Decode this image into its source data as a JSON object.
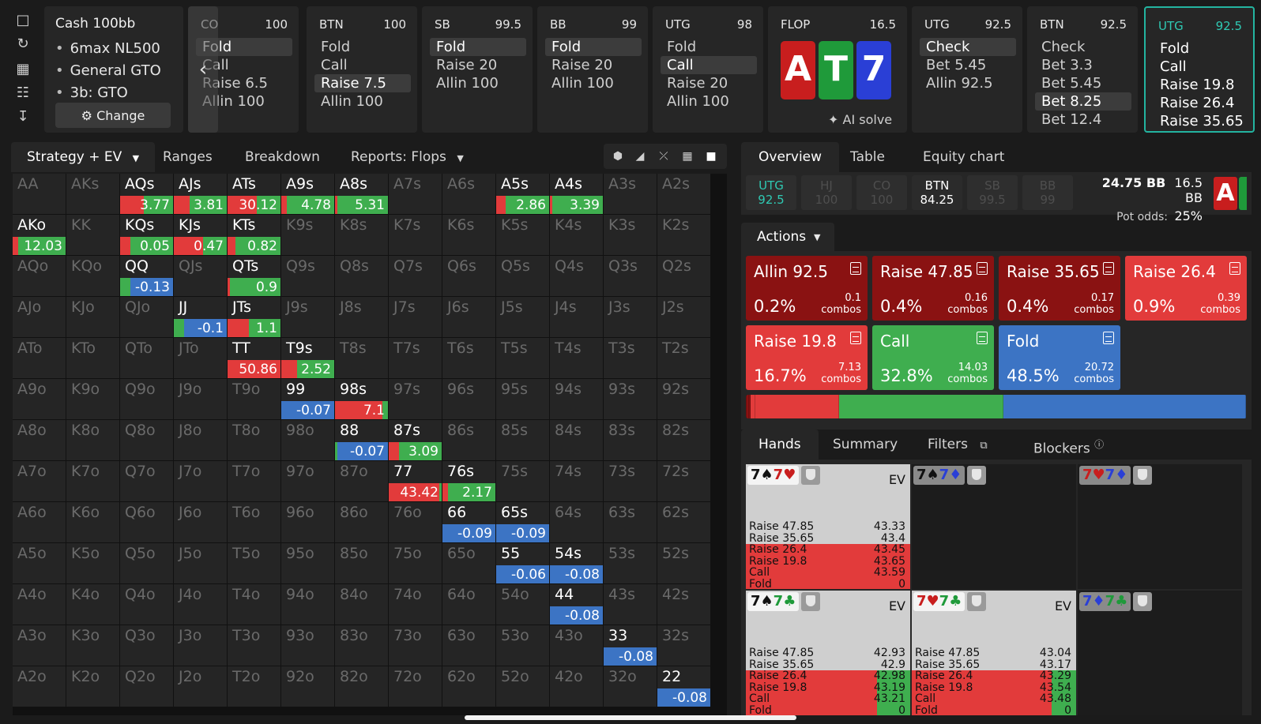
{
  "rail": {
    "icons": [
      "bookmark-icon",
      "refresh-icon",
      "save-icon",
      "gamepad-icon",
      "collapse-icon"
    ]
  },
  "cash": {
    "title": "Cash 100bb",
    "items": [
      "6max NL500",
      "General GTO",
      "3b: GTO"
    ],
    "change_label": "Change"
  },
  "positions": [
    {
      "name": "CO",
      "stack": "100",
      "options": [
        "Fold",
        "Call",
        "Raise 6.5",
        "Allin 100"
      ],
      "selected": 0
    },
    {
      "name": "BTN",
      "stack": "100",
      "options": [
        "Fold",
        "Call",
        "Raise 7.5",
        "Allin 100"
      ],
      "selected": 2
    },
    {
      "name": "SB",
      "stack": "99.5",
      "options": [
        "Fold",
        "Raise 20",
        "Allin 100"
      ],
      "selected": 0
    },
    {
      "name": "BB",
      "stack": "99",
      "options": [
        "Fold",
        "Raise 20",
        "Allin 100"
      ],
      "selected": 0
    },
    {
      "name": "UTG",
      "stack": "98",
      "options": [
        "Fold",
        "Call",
        "Raise 20",
        "Allin 100"
      ],
      "selected": 1
    }
  ],
  "flop": {
    "label": "FLOP",
    "pot": "16.5",
    "cards": [
      {
        "rank": "A",
        "color": "#c81e1e"
      },
      {
        "rank": "T",
        "color": "#1f9a3a"
      },
      {
        "rank": "7",
        "color": "#2a3fd6"
      }
    ],
    "ai_solve": "AI solve"
  },
  "postflop_positions": [
    {
      "name": "UTG",
      "stack": "92.5",
      "options": [
        "Check",
        "Bet 5.45",
        "Allin 92.5"
      ],
      "selected": 0
    },
    {
      "name": "BTN",
      "stack": "92.5",
      "options": [
        "Check",
        "Bet 3.3",
        "Bet 5.45",
        "Bet 8.25",
        "Bet 12.4"
      ],
      "selected": 3
    },
    {
      "name": "UTG",
      "stack": "92.5",
      "options": [
        "Fold",
        "Call",
        "Raise 19.8",
        "Raise 26.4",
        "Raise 35.65"
      ],
      "selected": -1
    }
  ],
  "strategy_tabs": [
    "Strategy + EV",
    "Ranges",
    "Breakdown",
    "Reports: Flops"
  ],
  "grid": [
    [
      [
        "AA",
        "",
        null
      ],
      [
        "AKs",
        "",
        null
      ],
      [
        "AQs",
        "3.77",
        [
          0.45,
          0.55,
          0
        ]
      ],
      [
        "AJs",
        "3.81",
        [
          0.3,
          0.7,
          0
        ]
      ],
      [
        "ATs",
        "30.12",
        [
          0.55,
          0.45,
          0
        ]
      ],
      [
        "A9s",
        "4.78",
        [
          0.1,
          0.9,
          0
        ]
      ],
      [
        "A8s",
        "5.31",
        [
          0.05,
          0.95,
          0
        ]
      ],
      [
        "A7s",
        "",
        null
      ],
      [
        "A6s",
        "",
        null
      ],
      [
        "A5s",
        "2.86",
        [
          0.18,
          0.82,
          0
        ]
      ],
      [
        "A4s",
        "3.39",
        [
          0.05,
          0.95,
          0
        ]
      ],
      [
        "A3s",
        "",
        null
      ],
      [
        "A2s",
        "",
        null
      ]
    ],
    [
      [
        "AKo",
        "12.03",
        [
          0.1,
          0.9,
          0
        ]
      ],
      [
        "KK",
        "",
        null
      ],
      [
        "KQs",
        "0.05",
        [
          0.2,
          0.8,
          0
        ]
      ],
      [
        "KJs",
        "0.47",
        [
          0.55,
          0.45,
          0
        ]
      ],
      [
        "KTs",
        "0.82",
        [
          0.15,
          0.85,
          0
        ]
      ],
      [
        "K9s",
        "",
        null
      ],
      [
        "K8s",
        "",
        null
      ],
      [
        "K7s",
        "",
        null
      ],
      [
        "K6s",
        "",
        null
      ],
      [
        "K5s",
        "",
        null
      ],
      [
        "K4s",
        "",
        null
      ],
      [
        "K3s",
        "",
        null
      ],
      [
        "K2s",
        "",
        null
      ]
    ],
    [
      [
        "AQo",
        "",
        null
      ],
      [
        "KQo",
        "",
        null
      ],
      [
        "QQ",
        "-0.13",
        [
          0,
          0.2,
          0.8
        ]
      ],
      [
        "QJs",
        "",
        null
      ],
      [
        "QTs",
        "0.9",
        [
          0.05,
          0.95,
          0
        ]
      ],
      [
        "Q9s",
        "",
        null
      ],
      [
        "Q8s",
        "",
        null
      ],
      [
        "Q7s",
        "",
        null
      ],
      [
        "Q6s",
        "",
        null
      ],
      [
        "Q5s",
        "",
        null
      ],
      [
        "Q4s",
        "",
        null
      ],
      [
        "Q3s",
        "",
        null
      ],
      [
        "Q2s",
        "",
        null
      ]
    ],
    [
      [
        "AJo",
        "",
        null
      ],
      [
        "KJo",
        "",
        null
      ],
      [
        "QJo",
        "",
        null
      ],
      [
        "JJ",
        "-0.1",
        [
          0,
          0.2,
          0.8
        ]
      ],
      [
        "JTs",
        "1.1",
        [
          0.4,
          0.6,
          0
        ]
      ],
      [
        "J9s",
        "",
        null
      ],
      [
        "J8s",
        "",
        null
      ],
      [
        "J7s",
        "",
        null
      ],
      [
        "J6s",
        "",
        null
      ],
      [
        "J5s",
        "",
        null
      ],
      [
        "J4s",
        "",
        null
      ],
      [
        "J3s",
        "",
        null
      ],
      [
        "J2s",
        "",
        null
      ]
    ],
    [
      [
        "ATo",
        "",
        null
      ],
      [
        "KTo",
        "",
        null
      ],
      [
        "QTo",
        "",
        null
      ],
      [
        "JTo",
        "",
        null
      ],
      [
        "TT",
        "50.86",
        [
          1,
          0,
          0
        ]
      ],
      [
        "T9s",
        "2.52",
        [
          0.3,
          0.7,
          0
        ]
      ],
      [
        "T8s",
        "",
        null
      ],
      [
        "T7s",
        "",
        null
      ],
      [
        "T6s",
        "",
        null
      ],
      [
        "T5s",
        "",
        null
      ],
      [
        "T4s",
        "",
        null
      ],
      [
        "T3s",
        "",
        null
      ],
      [
        "T2s",
        "",
        null
      ]
    ],
    [
      [
        "A9o",
        "",
        null
      ],
      [
        "K9o",
        "",
        null
      ],
      [
        "Q9o",
        "",
        null
      ],
      [
        "J9o",
        "",
        null
      ],
      [
        "T9o",
        "",
        null
      ],
      [
        "99",
        "-0.07",
        [
          0,
          0,
          1
        ]
      ],
      [
        "98s",
        "7.1",
        [
          0.9,
          0.1,
          0
        ]
      ],
      [
        "97s",
        "",
        null
      ],
      [
        "96s",
        "",
        null
      ],
      [
        "95s",
        "",
        null
      ],
      [
        "94s",
        "",
        null
      ],
      [
        "93s",
        "",
        null
      ],
      [
        "92s",
        "",
        null
      ]
    ],
    [
      [
        "A8o",
        "",
        null
      ],
      [
        "K8o",
        "",
        null
      ],
      [
        "Q8o",
        "",
        null
      ],
      [
        "J8o",
        "",
        null
      ],
      [
        "T8o",
        "",
        null
      ],
      [
        "98o",
        "",
        null
      ],
      [
        "88",
        "-0.07",
        [
          0,
          0.05,
          0.95
        ]
      ],
      [
        "87s",
        "3.09",
        [
          0.2,
          0.8,
          0
        ]
      ],
      [
        "86s",
        "",
        null
      ],
      [
        "85s",
        "",
        null
      ],
      [
        "84s",
        "",
        null
      ],
      [
        "83s",
        "",
        null
      ],
      [
        "82s",
        "",
        null
      ]
    ],
    [
      [
        "A7o",
        "",
        null
      ],
      [
        "K7o",
        "",
        null
      ],
      [
        "Q7o",
        "",
        null
      ],
      [
        "J7o",
        "",
        null
      ],
      [
        "T7o",
        "",
        null
      ],
      [
        "97o",
        "",
        null
      ],
      [
        "87o",
        "",
        null
      ],
      [
        "77",
        "43.42",
        [
          0.95,
          0.05,
          0
        ]
      ],
      [
        "76s",
        "2.17",
        [
          0.1,
          0.9,
          0
        ]
      ],
      [
        "75s",
        "",
        null
      ],
      [
        "74s",
        "",
        null
      ],
      [
        "73s",
        "",
        null
      ],
      [
        "72s",
        "",
        null
      ]
    ],
    [
      [
        "A6o",
        "",
        null
      ],
      [
        "K6o",
        "",
        null
      ],
      [
        "Q6o",
        "",
        null
      ],
      [
        "J6o",
        "",
        null
      ],
      [
        "T6o",
        "",
        null
      ],
      [
        "96o",
        "",
        null
      ],
      [
        "86o",
        "",
        null
      ],
      [
        "76o",
        "",
        null
      ],
      [
        "66",
        "-0.09",
        [
          0,
          0,
          1
        ]
      ],
      [
        "65s",
        "-0.09",
        [
          0,
          0,
          1
        ]
      ],
      [
        "64s",
        "",
        null
      ],
      [
        "63s",
        "",
        null
      ],
      [
        "62s",
        "",
        null
      ]
    ],
    [
      [
        "A5o",
        "",
        null
      ],
      [
        "K5o",
        "",
        null
      ],
      [
        "Q5o",
        "",
        null
      ],
      [
        "J5o",
        "",
        null
      ],
      [
        "T5o",
        "",
        null
      ],
      [
        "95o",
        "",
        null
      ],
      [
        "85o",
        "",
        null
      ],
      [
        "75o",
        "",
        null
      ],
      [
        "65o",
        "",
        null
      ],
      [
        "55",
        "-0.06",
        [
          0,
          0,
          1
        ]
      ],
      [
        "54s",
        "-0.08",
        [
          0,
          0,
          1
        ]
      ],
      [
        "53s",
        "",
        null
      ],
      [
        "52s",
        "",
        null
      ]
    ],
    [
      [
        "A4o",
        "",
        null
      ],
      [
        "K4o",
        "",
        null
      ],
      [
        "Q4o",
        "",
        null
      ],
      [
        "J4o",
        "",
        null
      ],
      [
        "T4o",
        "",
        null
      ],
      [
        "94o",
        "",
        null
      ],
      [
        "84o",
        "",
        null
      ],
      [
        "74o",
        "",
        null
      ],
      [
        "64o",
        "",
        null
      ],
      [
        "54o",
        "",
        null
      ],
      [
        "44",
        "-0.08",
        [
          0,
          0,
          1
        ]
      ],
      [
        "43s",
        "",
        null
      ],
      [
        "42s",
        "",
        null
      ]
    ],
    [
      [
        "A3o",
        "",
        null
      ],
      [
        "K3o",
        "",
        null
      ],
      [
        "Q3o",
        "",
        null
      ],
      [
        "J3o",
        "",
        null
      ],
      [
        "T3o",
        "",
        null
      ],
      [
        "93o",
        "",
        null
      ],
      [
        "83o",
        "",
        null
      ],
      [
        "73o",
        "",
        null
      ],
      [
        "63o",
        "",
        null
      ],
      [
        "53o",
        "",
        null
      ],
      [
        "43o",
        "",
        null
      ],
      [
        "33",
        "-0.08",
        [
          0,
          0,
          1
        ]
      ],
      [
        "32s",
        "",
        null
      ]
    ],
    [
      [
        "A2o",
        "",
        null
      ],
      [
        "K2o",
        "",
        null
      ],
      [
        "Q2o",
        "",
        null
      ],
      [
        "J2o",
        "",
        null
      ],
      [
        "T2o",
        "",
        null
      ],
      [
        "92o",
        "",
        null
      ],
      [
        "82o",
        "",
        null
      ],
      [
        "72o",
        "",
        null
      ],
      [
        "62o",
        "",
        null
      ],
      [
        "52o",
        "",
        null
      ],
      [
        "42o",
        "",
        null
      ],
      [
        "32o",
        "",
        null
      ],
      [
        "22",
        "-0.08",
        [
          0,
          0,
          1
        ]
      ]
    ]
  ],
  "colors": {
    "raise": "#e23b3b",
    "call": "#3fae4f",
    "fold": "#3c74c4",
    "allin": "#8a1212",
    "accent": "#2fc9b3"
  },
  "right_tabs": [
    "Overview",
    "Table",
    "Equity chart"
  ],
  "overview": {
    "chips": [
      {
        "name": "UTG",
        "stack": "92.5"
      },
      {
        "name": "HJ",
        "stack": "100"
      },
      {
        "name": "CO",
        "stack": "100"
      },
      {
        "name": "BTN",
        "stack": "84.25"
      },
      {
        "name": "SB",
        "stack": "99.5"
      },
      {
        "name": "BB",
        "stack": "99"
      }
    ],
    "to_call": "24.75 BB",
    "pot": "16.5 BB",
    "pot_odds_label": "Pot odds:",
    "pot_odds": "25%"
  },
  "actions_label": "Actions",
  "actions": [
    {
      "name": "Allin 92.5",
      "pct": "0.2%",
      "combos": "0.1",
      "kind": "allin"
    },
    {
      "name": "Raise 47.85",
      "pct": "0.4%",
      "combos": "0.16",
      "kind": "allin"
    },
    {
      "name": "Raise 35.65",
      "pct": "0.4%",
      "combos": "0.17",
      "kind": "allin"
    },
    {
      "name": "Raise 26.4",
      "pct": "0.9%",
      "combos": "0.39",
      "kind": "raise"
    },
    {
      "name": "Raise 19.8",
      "pct": "16.7%",
      "combos": "7.13",
      "kind": "raise"
    },
    {
      "name": "Call",
      "pct": "32.8%",
      "combos": "14.03",
      "kind": "call"
    },
    {
      "name": "Fold",
      "pct": "48.5%",
      "combos": "20.72",
      "kind": "fold"
    }
  ],
  "combos_word": "combos",
  "freq_bar": [
    {
      "kind": "allin",
      "value": 0.2
    },
    {
      "kind": "allin",
      "value": 0.4
    },
    {
      "kind": "allin",
      "value": 0.4
    },
    {
      "kind": "raise",
      "value": 0.9
    },
    {
      "kind": "raise",
      "value": 16.7
    },
    {
      "kind": "call",
      "value": 32.8
    },
    {
      "kind": "fold",
      "value": 48.5
    }
  ],
  "hands_tabs": [
    "Hands",
    "Summary",
    "Filters",
    "Blockers"
  ],
  "hands": [
    {
      "r1": "7",
      "s1": "♠",
      "c1": "#111",
      "r2": "7",
      "s2": "♥",
      "c2": "#c81e1e",
      "ev_label": "EV",
      "rows": [
        [
          "Raise 47.85",
          "43.33"
        ],
        [
          "Raise 35.65",
          "43.4"
        ],
        [
          "Raise 26.4",
          "43.45"
        ],
        [
          "Raise 19.8",
          "43.65"
        ],
        [
          "Call",
          "43.59"
        ],
        [
          "Fold",
          "0"
        ]
      ],
      "red": 1.0,
      "green": 0
    },
    {
      "r1": "7",
      "s1": "♠",
      "c1": "#111",
      "r2": "7",
      "s2": "♦",
      "c2": "#2a3fd6",
      "ev_label": "",
      "rows": [],
      "red": 0,
      "green": 0
    },
    {
      "r1": "7",
      "s1": "♥",
      "c1": "#c81e1e",
      "r2": "7",
      "s2": "♦",
      "c2": "#2a3fd6",
      "ev_label": "",
      "rows": [],
      "red": 0,
      "green": 0
    },
    {
      "r1": "7",
      "s1": "♠",
      "c1": "#111",
      "r2": "7",
      "s2": "♣",
      "c2": "#1f9a3a",
      "ev_label": "EV",
      "rows": [
        [
          "Raise 47.85",
          "42.93"
        ],
        [
          "Raise 35.65",
          "42.9"
        ],
        [
          "Raise 26.4",
          "42.98"
        ],
        [
          "Raise 19.8",
          "43.19"
        ],
        [
          "Call",
          "43.21"
        ],
        [
          "Fold",
          "0"
        ]
      ],
      "red": 0.8,
      "green": 0.2
    },
    {
      "r1": "7",
      "s1": "♥",
      "c1": "#c81e1e",
      "r2": "7",
      "s2": "♣",
      "c2": "#1f9a3a",
      "ev_label": "EV",
      "rows": [
        [
          "Raise 47.85",
          "43.04"
        ],
        [
          "Raise 35.65",
          "43.17"
        ],
        [
          "Raise 26.4",
          "43.29"
        ],
        [
          "Raise 19.8",
          "43.54"
        ],
        [
          "Call",
          "43.48"
        ],
        [
          "Fold",
          "0"
        ]
      ],
      "red": 0.85,
      "green": 0.15
    },
    {
      "r1": "7",
      "s1": "♦",
      "c1": "#2a3fd6",
      "r2": "7",
      "s2": "♣",
      "c2": "#1f9a3a",
      "ev_label": "",
      "rows": [],
      "red": 0,
      "green": 0
    }
  ]
}
